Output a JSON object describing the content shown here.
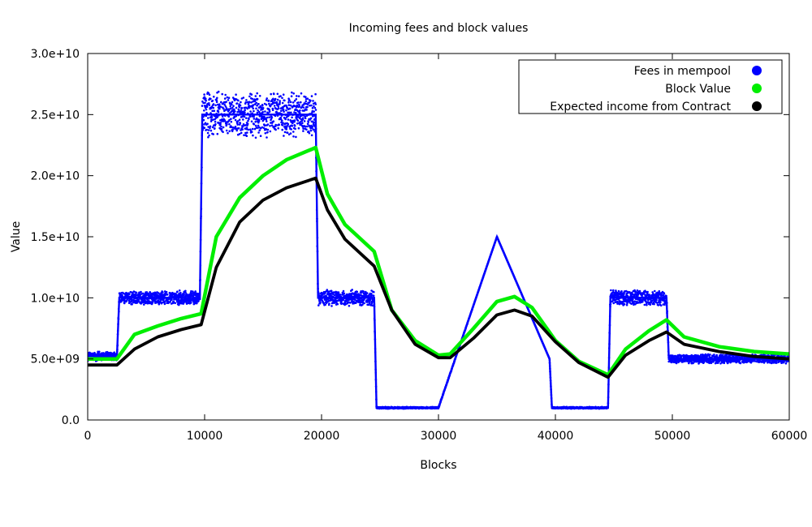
{
  "chart_data": {
    "type": "scatter",
    "title": "Incoming fees and block values",
    "xlabel": "Blocks",
    "ylabel": "Value",
    "xlim": [
      0,
      60000
    ],
    "ylim": [
      0,
      30000000000
    ],
    "x_ticks": [
      {
        "value": 0,
        "label": "0"
      },
      {
        "value": 10000,
        "label": "10000"
      },
      {
        "value": 20000,
        "label": "20000"
      },
      {
        "value": 30000,
        "label": "30000"
      },
      {
        "value": 40000,
        "label": "40000"
      },
      {
        "value": 50000,
        "label": "50000"
      },
      {
        "value": 60000,
        "label": "60000"
      }
    ],
    "y_ticks": [
      {
        "value": 0,
        "label": "0.0"
      },
      {
        "value": 5000000000,
        "label": "5.0e+09"
      },
      {
        "value": 10000000000,
        "label": "1.0e+10"
      },
      {
        "value": 15000000000,
        "label": "1.5e+10"
      },
      {
        "value": 20000000000,
        "label": "2.0e+10"
      },
      {
        "value": 25000000000,
        "label": "2.5e+10"
      },
      {
        "value": 30000000000,
        "label": "3.0e+10"
      }
    ],
    "grid": false,
    "legend_position": "top-right",
    "series": [
      {
        "name": "Fees in mempool",
        "color": "#0000ff",
        "x": [
          0,
          2500,
          2700,
          9600,
          9800,
          19500,
          19700,
          24500,
          24700,
          30000,
          35000,
          39500,
          39700,
          44500,
          44700,
          49500,
          49700,
          60000
        ],
        "y": [
          5200000000,
          5200000000,
          10000000000,
          10000000000,
          25000000000,
          25000000000,
          10000000000,
          10000000000,
          1000000000,
          1000000000,
          15000000000,
          5000000000,
          1000000000,
          1000000000,
          10000000000,
          10000000000,
          5000000000,
          5000000000
        ],
        "noise_spread": [
          400000000,
          400000000,
          600000000,
          600000000,
          2000000000,
          2000000000,
          700000000,
          700000000,
          80000000,
          80000000,
          0,
          0,
          80000000,
          80000000,
          700000000,
          700000000,
          400000000,
          400000000
        ]
      },
      {
        "name": "Block Value",
        "color": "#00ee00",
        "x": [
          0,
          2500,
          4000,
          6000,
          8000,
          9700,
          11000,
          13000,
          15000,
          17000,
          19500,
          20500,
          22000,
          24500,
          26000,
          28000,
          30000,
          31000,
          33000,
          35000,
          36500,
          38000,
          40000,
          42000,
          44500,
          46000,
          48000,
          49500,
          51000,
          54000,
          57000,
          60000
        ],
        "y": [
          5000000000,
          5000000000,
          7000000000,
          7700000000,
          8300000000,
          8700000000,
          15000000000,
          18200000000,
          20000000000,
          21300000000,
          22300000000,
          18500000000,
          16000000000,
          13800000000,
          9000000000,
          6500000000,
          5300000000,
          5400000000,
          7500000000,
          9700000000,
          10100000000,
          9200000000,
          6500000000,
          4800000000,
          3700000000,
          5800000000,
          7300000000,
          8200000000,
          6800000000,
          6000000000,
          5600000000,
          5400000000
        ]
      },
      {
        "name": "Expected income from Contract",
        "color": "#000000",
        "x": [
          0,
          2500,
          4000,
          6000,
          8000,
          9700,
          11000,
          13000,
          15000,
          17000,
          19500,
          20500,
          22000,
          24500,
          26000,
          28000,
          30000,
          31000,
          33000,
          35000,
          36500,
          38000,
          40000,
          42000,
          44500,
          46000,
          48000,
          49500,
          51000,
          54000,
          57000,
          60000
        ],
        "y": [
          4500000000,
          4500000000,
          5800000000,
          6800000000,
          7400000000,
          7800000000,
          12500000000,
          16200000000,
          18000000000,
          19000000000,
          19800000000,
          17200000000,
          14800000000,
          12600000000,
          9000000000,
          6200000000,
          5100000000,
          5100000000,
          6700000000,
          8600000000,
          9000000000,
          8500000000,
          6400000000,
          4700000000,
          3500000000,
          5300000000,
          6500000000,
          7200000000,
          6200000000,
          5600000000,
          5200000000,
          5000000000
        ]
      }
    ]
  }
}
